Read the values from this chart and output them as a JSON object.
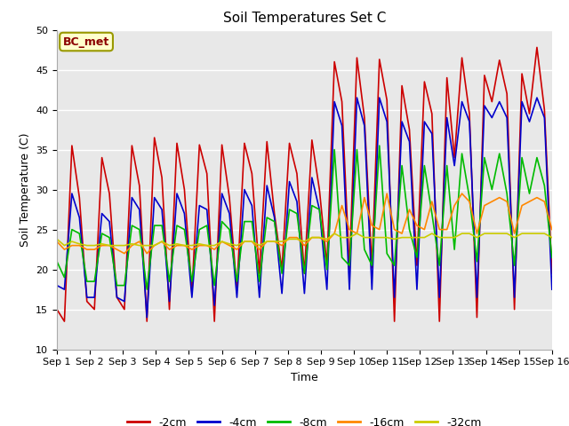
{
  "title": "Soil Temperatures Set C",
  "xlabel": "Time",
  "ylabel": "Soil Temperature (C)",
  "ylim": [
    10,
    50
  ],
  "xlim": [
    0,
    15
  ],
  "xtick_labels": [
    "Sep 1",
    "Sep 2",
    "Sep 3",
    "Sep 4",
    "Sep 5",
    "Sep 6",
    "Sep 7",
    "Sep 8",
    "Sep 9",
    "Sep 10",
    "Sep 11",
    "Sep 12",
    "Sep 13",
    "Sep 14",
    "Sep 15",
    "Sep 16"
  ],
  "annotation": "BC_met",
  "fig_bg_color": "#ffffff",
  "plot_bg_color": "#e8e8e8",
  "colors": {
    "-2cm": "#cc0000",
    "-4cm": "#0000cc",
    "-8cm": "#00bb00",
    "-16cm": "#ff8800",
    "-32cm": "#cccc00"
  },
  "series": {
    "-2cm": [
      15.0,
      13.5,
      35.5,
      29.0,
      16.0,
      15.0,
      34.0,
      29.5,
      16.5,
      15.0,
      35.5,
      30.5,
      13.5,
      36.5,
      31.5,
      15.0,
      35.8,
      30.0,
      17.0,
      35.6,
      32.0,
      13.5,
      35.6,
      29.0,
      17.5,
      35.8,
      32.0,
      19.5,
      36.0,
      27.0,
      20.0,
      35.8,
      32.0,
      19.5,
      36.2,
      30.0,
      20.5,
      46.0,
      41.0,
      20.0,
      46.5,
      39.0,
      20.2,
      46.3,
      41.2,
      13.5,
      43.0,
      37.5,
      20.5,
      43.5,
      39.5,
      13.5,
      44.0,
      34.0,
      46.5,
      39.5,
      14.0,
      44.3,
      41.0,
      46.2,
      42.0,
      15.0,
      44.5,
      39.5,
      47.8,
      40.0,
      19.5
    ],
    "-4cm": [
      18.0,
      17.5,
      29.5,
      26.5,
      16.5,
      16.5,
      27.0,
      26.0,
      16.5,
      16.0,
      29.0,
      27.5,
      14.0,
      29.0,
      27.5,
      16.0,
      29.5,
      27.0,
      16.5,
      28.0,
      27.5,
      15.5,
      29.5,
      27.0,
      16.5,
      30.0,
      28.0,
      16.5,
      30.5,
      26.5,
      17.0,
      31.0,
      28.5,
      17.0,
      31.5,
      27.5,
      17.5,
      41.0,
      38.0,
      17.5,
      41.5,
      38.0,
      17.5,
      41.5,
      38.5,
      16.5,
      38.5,
      36.0,
      17.5,
      38.5,
      37.0,
      16.5,
      39.0,
      33.0,
      41.0,
      38.5,
      16.5,
      40.5,
      39.0,
      41.0,
      39.0,
      16.5,
      41.0,
      38.5,
      41.5,
      39.0,
      17.5
    ],
    "-8cm": [
      21.0,
      19.0,
      25.0,
      24.5,
      18.5,
      18.5,
      24.5,
      24.0,
      18.0,
      18.0,
      25.5,
      25.0,
      17.5,
      25.5,
      25.5,
      18.5,
      25.5,
      25.0,
      18.5,
      25.0,
      25.5,
      18.0,
      26.0,
      25.0,
      18.5,
      26.0,
      26.0,
      18.5,
      26.5,
      26.0,
      19.5,
      27.5,
      27.0,
      19.5,
      28.0,
      27.5,
      20.0,
      35.0,
      21.5,
      20.5,
      35.0,
      22.5,
      20.5,
      35.5,
      22.0,
      20.5,
      33.0,
      25.0,
      21.5,
      33.0,
      27.0,
      20.5,
      33.0,
      22.5,
      34.5,
      29.0,
      21.0,
      34.0,
      30.0,
      34.5,
      29.5,
      20.5,
      34.0,
      29.5,
      34.0,
      30.5,
      21.5
    ],
    "-16cm": [
      23.5,
      22.5,
      23.0,
      23.0,
      22.5,
      22.5,
      23.0,
      23.0,
      22.5,
      22.0,
      23.0,
      23.5,
      22.0,
      23.0,
      23.5,
      22.5,
      23.0,
      23.0,
      22.5,
      23.0,
      23.0,
      22.5,
      23.5,
      23.0,
      22.5,
      23.5,
      23.5,
      22.5,
      23.5,
      23.5,
      23.0,
      24.0,
      24.0,
      23.0,
      24.0,
      24.0,
      23.5,
      24.5,
      28.0,
      25.0,
      24.5,
      29.0,
      25.5,
      25.0,
      29.5,
      25.0,
      24.5,
      27.5,
      25.5,
      25.0,
      28.5,
      25.0,
      25.0,
      28.0,
      29.5,
      28.5,
      24.5,
      28.0,
      28.5,
      29.0,
      28.5,
      24.5,
      28.0,
      28.5,
      29.0,
      28.5,
      25.0
    ],
    "-32cm": [
      23.8,
      23.0,
      23.5,
      23.2,
      23.0,
      23.0,
      23.2,
      23.0,
      23.0,
      23.0,
      23.2,
      23.0,
      23.0,
      23.0,
      23.5,
      23.0,
      23.2,
      23.0,
      23.0,
      23.2,
      23.0,
      23.0,
      23.5,
      23.2,
      23.0,
      23.5,
      23.5,
      23.0,
      23.5,
      23.5,
      23.5,
      23.8,
      23.8,
      23.5,
      24.0,
      24.0,
      23.8,
      24.5,
      24.0,
      24.0,
      24.5,
      24.0,
      24.0,
      24.0,
      24.0,
      23.8,
      24.0,
      24.0,
      24.0,
      24.0,
      24.5,
      24.0,
      24.0,
      24.0,
      24.5,
      24.5,
      24.0,
      24.5,
      24.5,
      24.5,
      24.5,
      24.0,
      24.5,
      24.5,
      24.5,
      24.5,
      24.0
    ]
  },
  "legend_order": [
    "-2cm",
    "-4cm",
    "-8cm",
    "-16cm",
    "-32cm"
  ],
  "linewidth": 1.2,
  "title_fontsize": 11,
  "axis_fontsize": 9,
  "tick_fontsize": 8
}
